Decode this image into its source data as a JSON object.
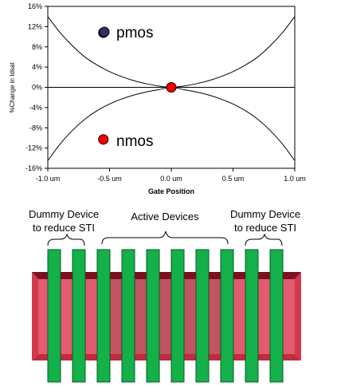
{
  "chart_data": {
    "type": "line",
    "xlabel": "Gate Position",
    "ylabel": "%Change in Idsat",
    "xlim": [
      -1.0,
      1.0
    ],
    "ylim": [
      -16,
      16
    ],
    "x_tick_values": [
      -1.0,
      -0.5,
      0.0,
      0.5,
      1.0
    ],
    "x_tick_labels": [
      "-1.0 um",
      "-0.5 um",
      "0.0 um",
      "0.5 um",
      "1.0 um"
    ],
    "y_tick_values": [
      16,
      12,
      8,
      4,
      0,
      -4,
      -8,
      -12,
      -16
    ],
    "y_tick_labels": [
      "16%",
      "12%",
      "8%",
      "4%",
      "0%",
      "-4%",
      "-8%",
      "-12%",
      "-16%"
    ],
    "grid": false,
    "series": [
      {
        "name": "pmos",
        "color": "#3b2a6b",
        "x": [
          -1.0,
          -0.9,
          -0.8,
          -0.7,
          -0.6,
          -0.5,
          -0.4,
          -0.3,
          -0.2,
          -0.1,
          0.0,
          0.1,
          0.2,
          0.3,
          0.4,
          0.5,
          0.6,
          0.7,
          0.8,
          0.9,
          1.0
        ],
        "y": [
          14.0,
          10.8,
          8.2,
          6.0,
          4.4,
          3.1,
          2.1,
          1.3,
          0.7,
          0.25,
          0.0,
          0.25,
          0.7,
          1.3,
          2.1,
          3.1,
          4.4,
          6.0,
          8.2,
          10.8,
          14.0
        ]
      },
      {
        "name": "nmos",
        "color": "#ff0000",
        "x": [
          -1.0,
          -0.9,
          -0.8,
          -0.7,
          -0.6,
          -0.5,
          -0.4,
          -0.3,
          -0.2,
          -0.1,
          0.0,
          0.1,
          0.2,
          0.3,
          0.4,
          0.5,
          0.6,
          0.7,
          0.8,
          0.9,
          1.0
        ],
        "y": [
          -14.5,
          -11.2,
          -8.5,
          -6.3,
          -4.6,
          -3.3,
          -2.3,
          -1.5,
          -0.9,
          -0.45,
          0.0,
          -0.45,
          -0.9,
          -1.5,
          -2.3,
          -3.3,
          -4.6,
          -6.3,
          -8.5,
          -11.2,
          -14.5
        ]
      }
    ],
    "markers": [
      {
        "series": "pmos",
        "x": -0.55,
        "y": 10.8,
        "color": "#3b2a6b"
      },
      {
        "series": "nmos",
        "x": -0.55,
        "y": -10.3,
        "color": "#ff0000"
      },
      {
        "series": "center",
        "x": 0.0,
        "y": 0.0,
        "color": "#ff0000"
      }
    ],
    "legend": [
      {
        "label": "pmos",
        "color": "#3b2a6b"
      },
      {
        "label": "nmos",
        "color": "#ff0000"
      }
    ]
  },
  "diagram": {
    "labels": {
      "dummy_left_line1": "Dummy Device",
      "dummy_left_line2": "to reduce STI",
      "active": "Active Devices",
      "dummy_right_line1": "Dummy Device",
      "dummy_right_line2": "to reduce STI"
    },
    "colors": {
      "active_region": "#e35b6e",
      "active_region_edge": "#c22a3e",
      "active_region_top": "#7a1020",
      "gate_fill": "#14b04a",
      "gate_stroke": "#0a5a24"
    },
    "gate_count": 10
  }
}
